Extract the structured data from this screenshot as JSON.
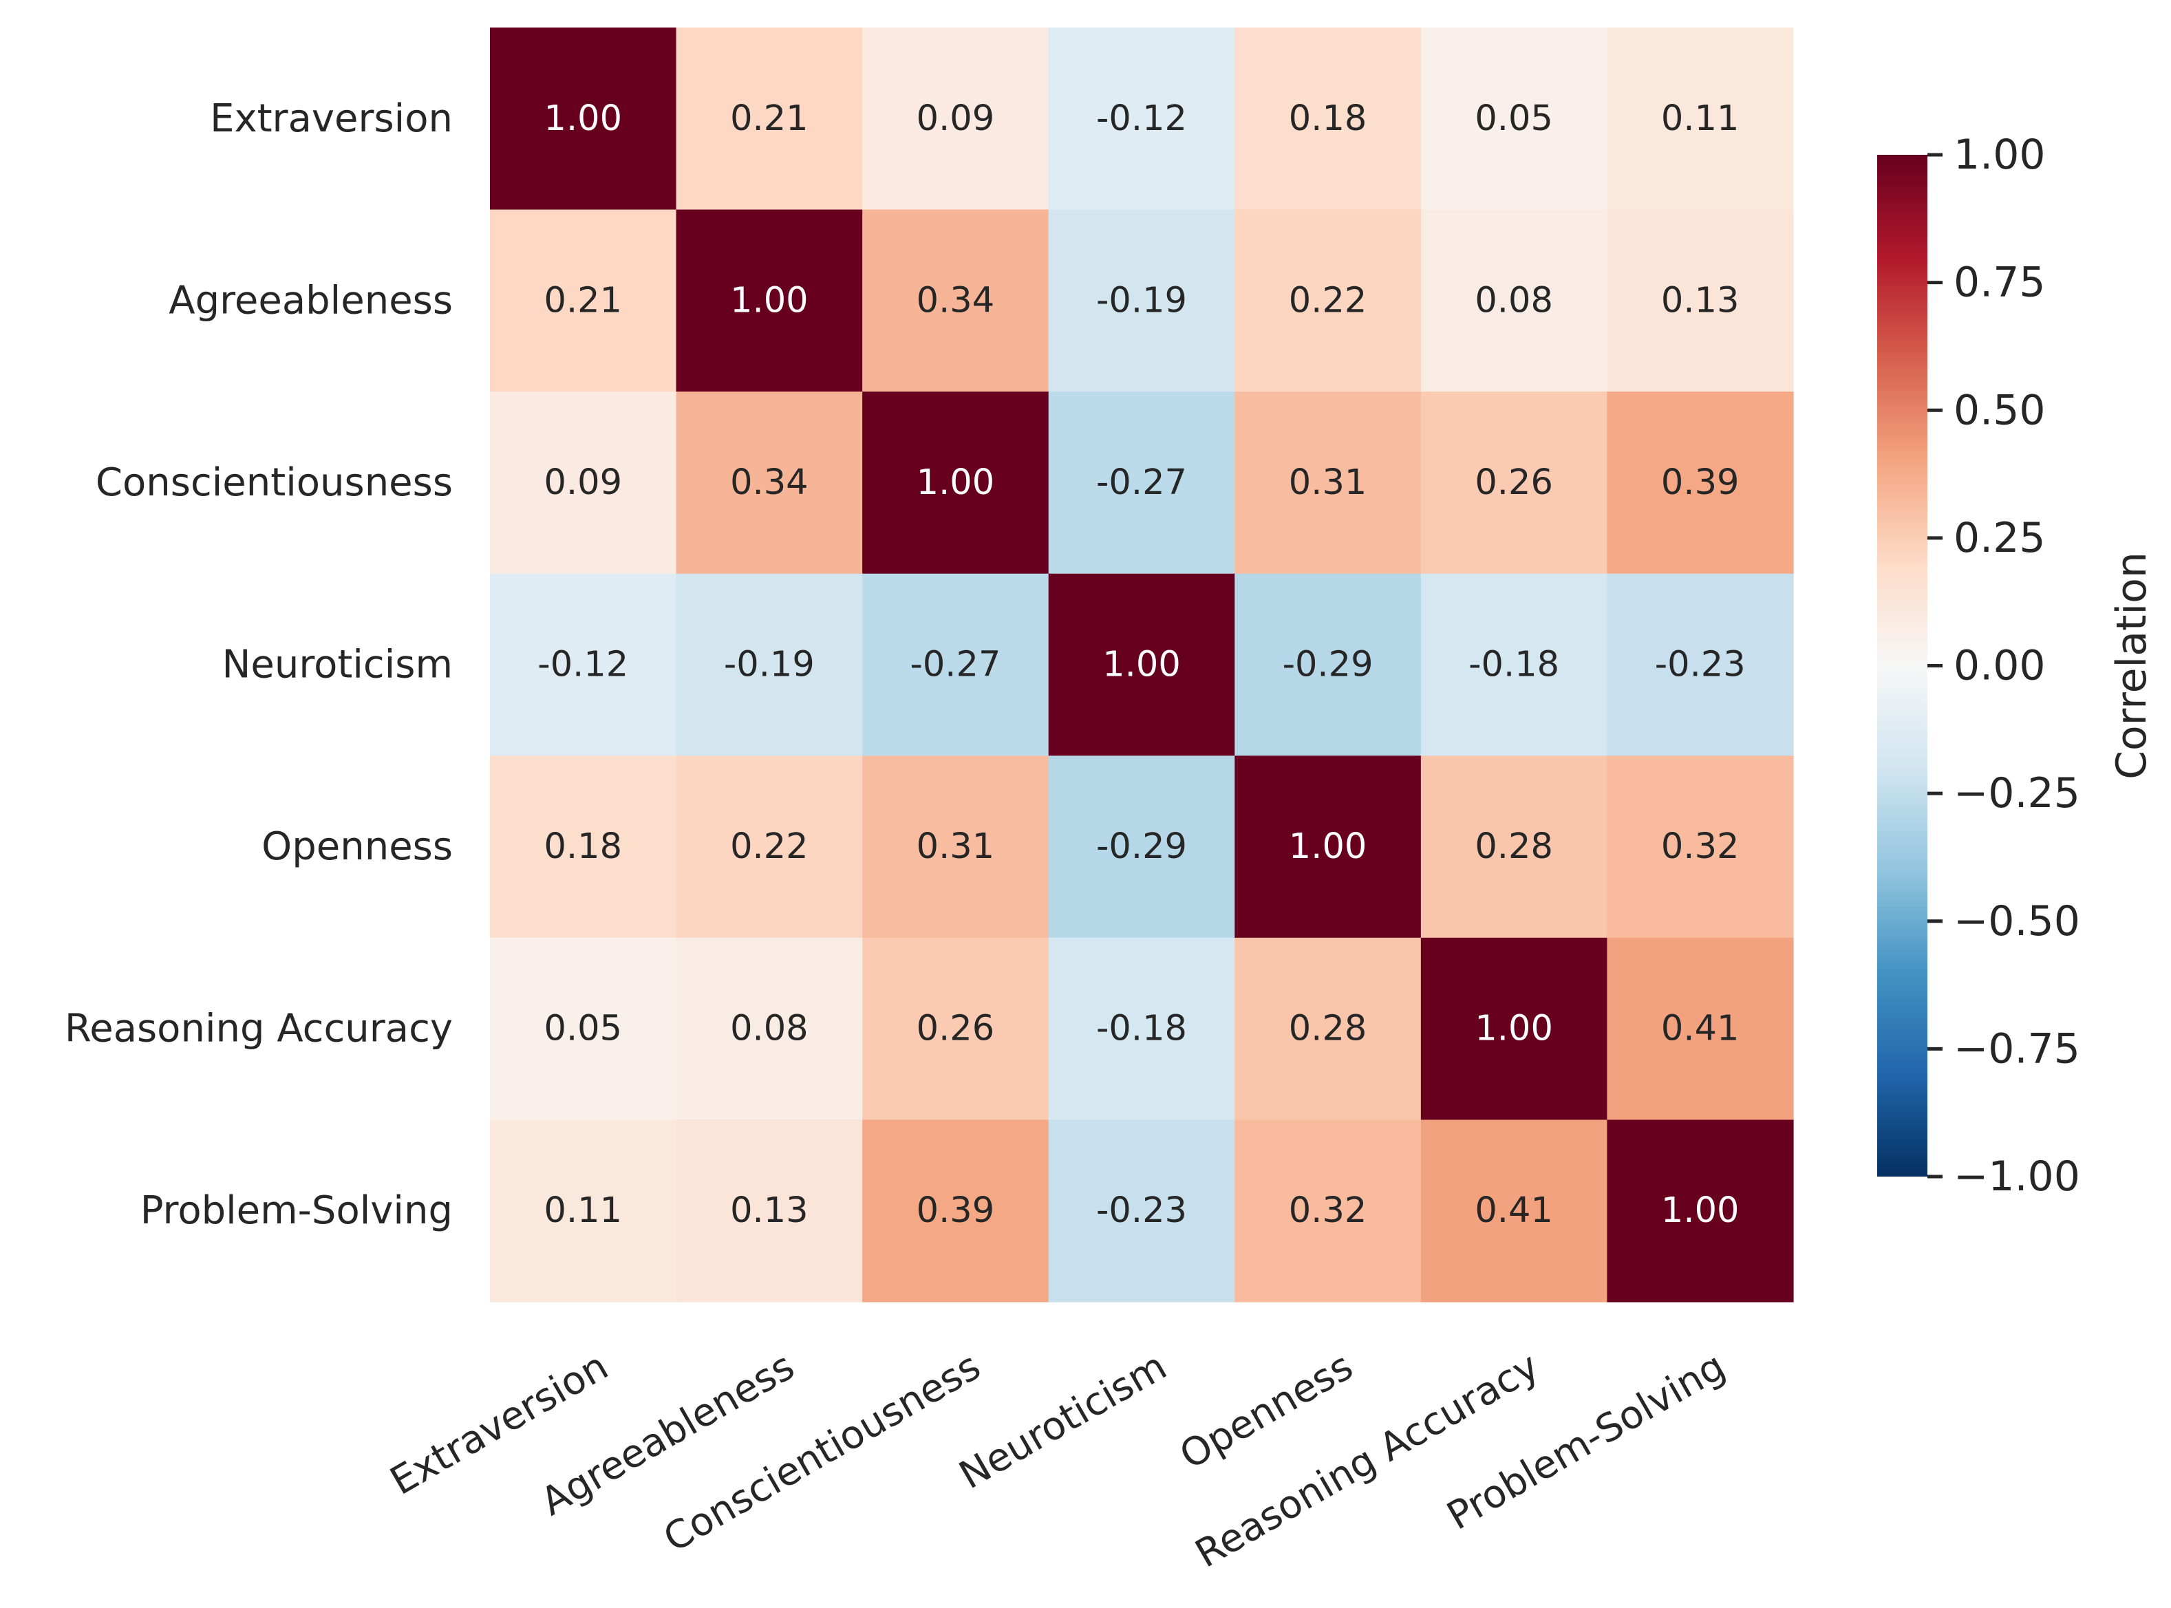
{
  "chart_data": {
    "type": "heatmap",
    "title": "",
    "row_labels": [
      "Extraversion",
      "Agreeableness",
      "Conscientiousness",
      "Neuroticism",
      "Openness",
      "Reasoning Accuracy",
      "Problem-Solving"
    ],
    "col_labels": [
      "Extraversion",
      "Agreeableness",
      "Conscientiousness",
      "Neuroticism",
      "Openness",
      "Reasoning Accuracy",
      "Problem-Solving"
    ],
    "values": [
      [
        1.0,
        0.21,
        0.09,
        -0.12,
        0.18,
        0.05,
        0.11
      ],
      [
        0.21,
        1.0,
        0.34,
        -0.19,
        0.22,
        0.08,
        0.13
      ],
      [
        0.09,
        0.34,
        1.0,
        -0.27,
        0.31,
        0.26,
        0.39
      ],
      [
        -0.12,
        -0.19,
        -0.27,
        1.0,
        -0.29,
        -0.18,
        -0.23
      ],
      [
        0.18,
        0.22,
        0.31,
        -0.29,
        1.0,
        0.28,
        0.32
      ],
      [
        0.05,
        0.08,
        0.26,
        -0.18,
        0.28,
        1.0,
        0.41
      ],
      [
        0.11,
        0.13,
        0.39,
        -0.23,
        0.32,
        0.41,
        1.0
      ]
    ],
    "value_labels": [
      [
        "1.00",
        "0.21",
        "0.09",
        "-0.12",
        "0.18",
        "0.05",
        "0.11"
      ],
      [
        "0.21",
        "1.00",
        "0.34",
        "-0.19",
        "0.22",
        "0.08",
        "0.13"
      ],
      [
        "0.09",
        "0.34",
        "1.00",
        "-0.27",
        "0.31",
        "0.26",
        "0.39"
      ],
      [
        "-0.12",
        "-0.19",
        "-0.27",
        "1.00",
        "-0.29",
        "-0.18",
        "-0.23"
      ],
      [
        "0.18",
        "0.22",
        "0.31",
        "-0.29",
        "1.00",
        "0.28",
        "0.32"
      ],
      [
        "0.05",
        "0.08",
        "0.26",
        "-0.18",
        "0.28",
        "1.00",
        "0.41"
      ],
      [
        "0.11",
        "0.13",
        "0.39",
        "-0.23",
        "0.32",
        "0.41",
        "1.00"
      ]
    ],
    "colormap": "RdBu_r",
    "vmin": -1.0,
    "vmax": 1.0,
    "colorbar": {
      "label": "Correlation",
      "ticks": [
        1.0,
        0.75,
        0.5,
        0.25,
        0.0,
        -0.25,
        -0.5,
        -0.75,
        -1.0
      ],
      "tick_labels": [
        "1.00",
        "0.75",
        "0.50",
        "0.25",
        "0.00",
        "−0.25",
        "−0.50",
        "−0.75",
        "−1.00"
      ]
    }
  },
  "colors": {
    "text_dark": "#262626",
    "text_light": "#ffffff",
    "background": "#ffffff",
    "colormap_stops": [
      "#053061",
      "#2166ac",
      "#4393c3",
      "#92c5de",
      "#d1e5f0",
      "#f7f7f7",
      "#fddbc7",
      "#f4a582",
      "#d6604d",
      "#b2182b",
      "#67001f"
    ]
  }
}
